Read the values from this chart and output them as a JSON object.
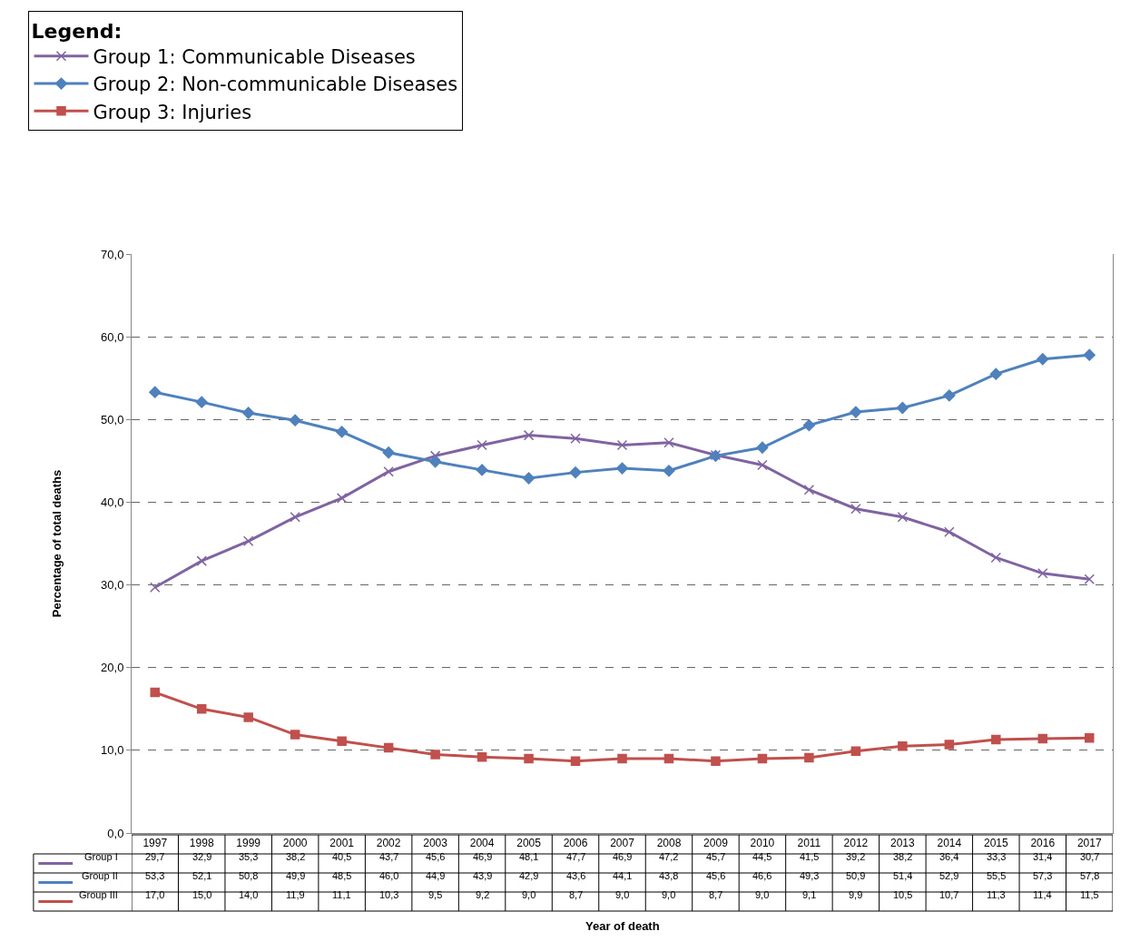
{
  "chart_data": {
    "type": "line",
    "legend_title": "Legend:",
    "ylabel": "Percentage of total deaths",
    "categories": [
      "1997",
      "1998",
      "1999",
      "2000",
      "2001",
      "2002",
      "2003",
      "2004",
      "2005",
      "2006",
      "2007",
      "2008",
      "2009",
      "2010",
      "2011",
      "2012",
      "2013",
      "2014",
      "2015",
      "2016",
      "2017"
    ],
    "series": [
      {
        "name": "Group 1: Communicable Diseases",
        "color": "#8064a2",
        "marker": "cross",
        "values": [
          29.7,
          32.9,
          35.3,
          38.2,
          40.5,
          43.7,
          45.6,
          46.9,
          48.1,
          47.7,
          46.9,
          47.2,
          45.7,
          44.5,
          41.5,
          39.2,
          38.2,
          36.4,
          33.3,
          31.4,
          30.7
        ],
        "value_labels": [
          "29,7",
          "32,9",
          "35,3",
          "38,2",
          "40,5",
          "43,7",
          "45,6",
          "46,9",
          "48,1",
          "47,7",
          "46,9",
          "47,2",
          "45,7",
          "44,5",
          "41,5",
          "39,2",
          "38,2",
          "36,4",
          "33,3",
          "31,4",
          "30,7"
        ]
      },
      {
        "name": "Group 2: Non-communicable Diseases",
        "color": "#4f81bd",
        "marker": "diamond",
        "values": [
          53.3,
          52.1,
          50.8,
          49.9,
          48.5,
          46.0,
          44.9,
          43.9,
          42.9,
          43.6,
          44.1,
          43.8,
          45.6,
          46.6,
          49.3,
          50.9,
          51.4,
          52.9,
          55.5,
          57.3,
          57.8
        ],
        "value_labels": [
          "53,3",
          "52,1",
          "50,8",
          "49,9",
          "48,5",
          "46,0",
          "44,9",
          "43,9",
          "42,9",
          "43,6",
          "44,1",
          "43,8",
          "45,6",
          "46,6",
          "49,3",
          "50,9",
          "51,4",
          "52,9",
          "55,5",
          "57,3",
          "57,8"
        ]
      },
      {
        "name": "Group 3: Injuries",
        "color": "#c0504d",
        "marker": "square",
        "values": [
          17.0,
          15.0,
          14.0,
          11.9,
          11.1,
          10.3,
          9.5,
          9.2,
          9.0,
          8.7,
          9.0,
          9.0,
          8.7,
          9.0,
          9.1,
          9.9,
          10.5,
          10.7,
          11.3,
          11.4,
          11.5
        ],
        "value_labels": [
          "17,0",
          "15,0",
          "14,0",
          "11,9",
          "11,1",
          "10,3",
          "9,5",
          "9,2",
          "9,0",
          "8,7",
          "9,0",
          "9,0",
          "8,7",
          "9,0",
          "9,1",
          "9,9",
          "10,5",
          "10,7",
          "11,3",
          "11,4",
          "11,5"
        ]
      }
    ],
    "annotations": [
      "Group I",
      "Group II",
      "Group III",
      "Year of death"
    ],
    "ylim": [
      0,
      70
    ],
    "yticks": [
      {
        "value": 0,
        "label": "0,0"
      },
      {
        "value": 10,
        "label": "10,0"
      },
      {
        "value": 20,
        "label": "20,0"
      },
      {
        "value": 30,
        "label": "30,0"
      },
      {
        "value": 40,
        "label": "40,0"
      },
      {
        "value": 50,
        "label": "50,0"
      },
      {
        "value": 60,
        "label": "60,0"
      },
      {
        "value": 70,
        "label": "70,0"
      }
    ],
    "grid": "y",
    "legend": "top left"
  }
}
